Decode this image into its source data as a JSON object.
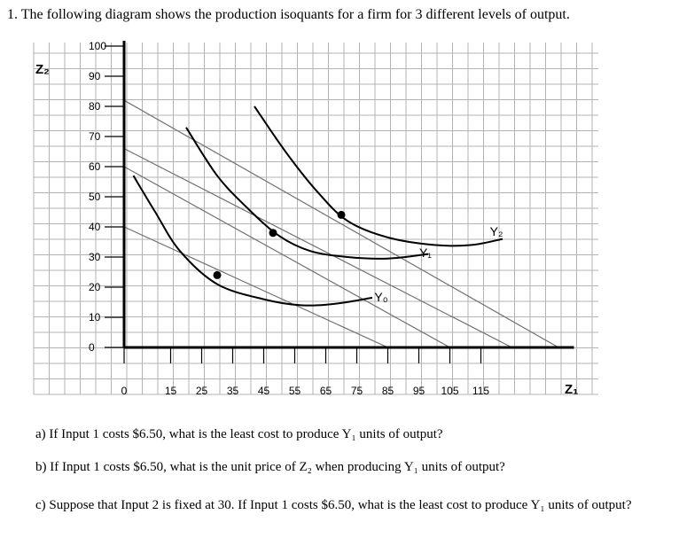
{
  "question": {
    "title": "1.  The following diagram shows the production isoquants for a firm for 3 different levels of output.",
    "part_a": "a)  If Input 1 costs $6.50, what is the least cost to produce Y₁ units of output?",
    "part_b": "b)  If Input 1 costs $6.50, what is the unit price of Z₂ when producing Y₁ units of output?",
    "part_c": "c) Suppose that Input 2 is fixed at 30. If Input 1 costs $6.50, what is the least cost to produce Y₁ units of output?"
  },
  "chart_data": {
    "type": "line",
    "xlabel": "Z₁",
    "ylabel": "Z₂",
    "xlim": [
      0,
      145
    ],
    "ylim": [
      0,
      100
    ],
    "x_ticks": [
      0,
      15,
      25,
      35,
      45,
      55,
      65,
      75,
      85,
      95,
      105,
      115
    ],
    "x_tick_labels": [
      "0",
      "15",
      "25",
      "35",
      "45",
      "55",
      "65",
      "75",
      "85",
      "95",
      "105",
      "115"
    ],
    "y_ticks": [
      0,
      10,
      20,
      30,
      40,
      50,
      60,
      70,
      80,
      90,
      100
    ],
    "y_tick_labels": [
      "0",
      "10",
      "20",
      "30",
      "40",
      "50",
      "60",
      "70",
      "80",
      "90",
      "100"
    ],
    "grid": true,
    "isoquants": [
      {
        "name": "Y₀",
        "points": [
          [
            3,
            57
          ],
          [
            10,
            45
          ],
          [
            18,
            32
          ],
          [
            30,
            21
          ],
          [
            45,
            16
          ],
          [
            57,
            14
          ],
          [
            68,
            14.5
          ],
          [
            80,
            16.5
          ]
        ]
      },
      {
        "name": "Y₁",
        "points": [
          [
            20,
            73
          ],
          [
            30,
            57
          ],
          [
            40,
            46
          ],
          [
            50,
            37
          ],
          [
            60,
            32
          ],
          [
            72,
            30
          ],
          [
            85,
            29.5
          ],
          [
            98,
            31
          ]
        ]
      },
      {
        "name": "Y₂",
        "points": [
          [
            42,
            80
          ],
          [
            52,
            65
          ],
          [
            62,
            52
          ],
          [
            72,
            42
          ],
          [
            85,
            36.5
          ],
          [
            100,
            34
          ],
          [
            112,
            34
          ],
          [
            122,
            36
          ]
        ]
      }
    ],
    "isocost_lines": [
      {
        "points": [
          [
            0,
            40
          ],
          [
            85,
            0
          ]
        ]
      },
      {
        "points": [
          [
            0,
            60
          ],
          [
            105,
            0
          ]
        ]
      },
      {
        "points": [
          [
            0,
            66
          ],
          [
            125,
            0
          ]
        ]
      },
      {
        "points": [
          [
            0,
            82
          ],
          [
            140,
            0
          ]
        ]
      }
    ],
    "tangency_points": [
      [
        30,
        24
      ],
      [
        48,
        38
      ],
      [
        70,
        44
      ]
    ],
    "colors": {
      "curve": "#000000",
      "isocost": "#707070",
      "grid": "#b3b3b3",
      "axis": "#000000"
    }
  }
}
